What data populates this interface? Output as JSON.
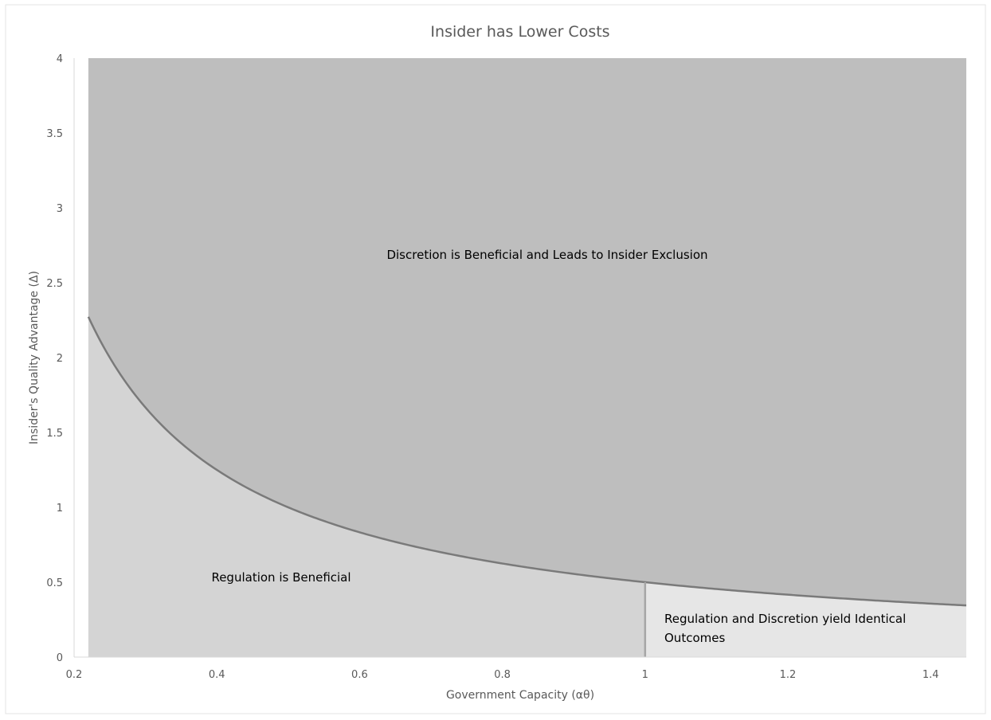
{
  "chart_data": {
    "type": "area",
    "title": "Insider has Lower Costs",
    "xlabel": "Government Capacity (αθ)",
    "ylabel": "Insider's Quality Advantage (Δ)",
    "xlim": [
      0.2,
      1.45
    ],
    "ylim": [
      0,
      4
    ],
    "x_ticks": [
      "0.2",
      "0.4",
      "0.6",
      "0.8",
      "1",
      "1.2",
      "1.4"
    ],
    "y_ticks": [
      "0",
      "0.5",
      "1",
      "1.5",
      "2",
      "2.5",
      "3",
      "3.5",
      "4"
    ],
    "grid": false,
    "boundary_curve": {
      "formula": "y = 0.5 / x",
      "x_start": 0.22,
      "x_end": 1.45
    },
    "divider_x": 1.0,
    "region_labels": {
      "discretion": "Discretion is Beneficial and Leads to Insider Exclusion",
      "regulation": "Regulation is Beneficial",
      "identical_line1": "Regulation and Discretion yield Identical",
      "identical_line2": "Outcomes"
    },
    "colors": {
      "discretion_region": "#bebebe",
      "regulation_region": "#d4d4d4",
      "identical_region": "#e6e6e6",
      "boundary_line": "#7a7a7a",
      "divider_line": "#a6a6a6",
      "axis_line": "#d9d9d9"
    }
  }
}
